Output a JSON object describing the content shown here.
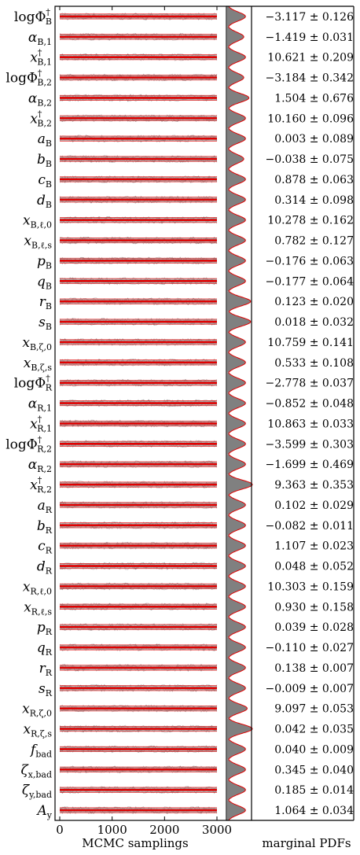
{
  "chart_data": {
    "type": "trace",
    "xlabel": "MCMC samplings",
    "pdf_label": "marginal PDFs",
    "x_ticks": [
      "0",
      "1000",
      "2000",
      "3000"
    ],
    "xlim": [
      0,
      3000
    ],
    "colors": {
      "trace": "#808080",
      "mean": "#e00000",
      "pdf_fill": "#808080",
      "pdf_line": "#e00000"
    },
    "parameters": [
      {
        "label": "logΦ†_B",
        "main": "logΦ",
        "sub": "B",
        "sup": "†",
        "mean": -3.117,
        "err": 0.126,
        "value_text": "−3.117 ± 0.126",
        "pdf_peak": 0.4
      },
      {
        "label": "α_B,1",
        "main": "α",
        "sub": "B,1",
        "sup": "",
        "mean": -1.419,
        "err": 0.031,
        "value_text": "−1.419 ± 0.031",
        "pdf_peak": 0.35
      },
      {
        "label": "x†_B,1",
        "main": "x",
        "sub": "B,1",
        "sup": "†",
        "mean": 10.621,
        "err": 0.209,
        "value_text": "10.621 ± 0.209",
        "pdf_peak": 0.4
      },
      {
        "label": "logΦ†_B,2",
        "main": "logΦ",
        "sub": "B,2",
        "sup": "†",
        "mean": -3.184,
        "err": 0.342,
        "value_text": "−3.184 ± 0.342",
        "pdf_peak": 0.35
      },
      {
        "label": "α_B,2",
        "main": "α",
        "sub": "B,2",
        "sup": "",
        "mean": 1.504,
        "err": 0.676,
        "value_text": "1.504 ± 0.676",
        "pdf_peak": 0.5
      },
      {
        "label": "x†_B,2",
        "main": "x",
        "sub": "B,2",
        "sup": "†",
        "mean": 10.16,
        "err": 0.096,
        "value_text": "10.160 ± 0.096",
        "pdf_peak": 0.4
      },
      {
        "label": "a_B",
        "main": "a",
        "sub": "B",
        "sup": "",
        "mean": 0.003,
        "err": 0.089,
        "value_text": "0.003 ± 0.089",
        "pdf_peak": 0.4
      },
      {
        "label": "b_B",
        "main": "b",
        "sub": "B",
        "sup": "",
        "mean": -0.038,
        "err": 0.075,
        "value_text": "−0.038 ± 0.075",
        "pdf_peak": 0.35
      },
      {
        "label": "c_B",
        "main": "c",
        "sub": "B",
        "sup": "",
        "mean": 0.878,
        "err": 0.063,
        "value_text": "0.878 ± 0.063",
        "pdf_peak": 0.4
      },
      {
        "label": "d_B",
        "main": "d",
        "sub": "B",
        "sup": "",
        "mean": 0.314,
        "err": 0.098,
        "value_text": "0.314 ± 0.098",
        "pdf_peak": 0.4
      },
      {
        "label": "x_B,ℓ,0",
        "main": "x",
        "sub": "B,ℓ,0",
        "sup": "",
        "mean": 10.278,
        "err": 0.162,
        "value_text": "10.278 ± 0.162",
        "pdf_peak": 0.4
      },
      {
        "label": "x_B,ℓ,s",
        "main": "x",
        "sub": "B,ℓ,s",
        "sup": "",
        "mean": 0.782,
        "err": 0.127,
        "value_text": "0.782 ± 0.127",
        "pdf_peak": 0.4
      },
      {
        "label": "p_B",
        "main": "p",
        "sub": "B",
        "sup": "",
        "mean": -0.176,
        "err": 0.063,
        "value_text": "−0.176 ± 0.063",
        "pdf_peak": 0.4
      },
      {
        "label": "q_B",
        "main": "q",
        "sub": "B",
        "sup": "",
        "mean": -0.177,
        "err": 0.064,
        "value_text": "−0.177 ± 0.064",
        "pdf_peak": 0.4
      },
      {
        "label": "r_B",
        "main": "r",
        "sub": "B",
        "sup": "",
        "mean": 0.123,
        "err": 0.02,
        "value_text": "0.123 ± 0.020",
        "pdf_peak": 0.55
      },
      {
        "label": "s_B",
        "main": "s",
        "sub": "B",
        "sup": "",
        "mean": 0.018,
        "err": 0.032,
        "value_text": "0.018 ± 0.032",
        "pdf_peak": 0.55
      },
      {
        "label": "x_B,ζ,0",
        "main": "x",
        "sub": "B,ζ,0",
        "sup": "",
        "mean": 10.759,
        "err": 0.141,
        "value_text": "10.759 ± 0.141",
        "pdf_peak": 0.4
      },
      {
        "label": "x_B,ζ,s",
        "main": "x",
        "sub": "B,ζ,s",
        "sup": "",
        "mean": 0.533,
        "err": 0.108,
        "value_text": "0.533 ± 0.108",
        "pdf_peak": 0.4
      },
      {
        "label": "logΦ†_R",
        "main": "logΦ",
        "sub": "R",
        "sup": "†",
        "mean": -2.778,
        "err": 0.037,
        "value_text": "−2.778 ± 0.037",
        "pdf_peak": 0.4
      },
      {
        "label": "α_R,1",
        "main": "α",
        "sub": "R,1",
        "sup": "",
        "mean": -0.852,
        "err": 0.048,
        "value_text": "−0.852 ± 0.048",
        "pdf_peak": 0.4
      },
      {
        "label": "x†_R,1",
        "main": "x",
        "sub": "R,1",
        "sup": "†",
        "mean": 10.863,
        "err": 0.033,
        "value_text": "10.863 ± 0.033",
        "pdf_peak": 0.4
      },
      {
        "label": "logΦ†_R,2",
        "main": "logΦ",
        "sub": "R,2",
        "sup": "†",
        "mean": -3.599,
        "err": 0.303,
        "value_text": "−3.599 ± 0.303",
        "pdf_peak": 0.4
      },
      {
        "label": "α_R,2",
        "main": "α",
        "sub": "R,2",
        "sup": "",
        "mean": -1.699,
        "err": 0.469,
        "value_text": "−1.699 ± 0.469",
        "pdf_peak": 0.4
      },
      {
        "label": "x†_R,2",
        "main": "x",
        "sub": "R,2",
        "sup": "†",
        "mean": 9.363,
        "err": 0.353,
        "value_text": "9.363 ± 0.353",
        "pdf_peak": 0.6
      },
      {
        "label": "a_R",
        "main": "a",
        "sub": "R",
        "sup": "",
        "mean": 0.102,
        "err": 0.029,
        "value_text": "0.102 ± 0.029",
        "pdf_peak": 0.4
      },
      {
        "label": "b_R",
        "main": "b",
        "sub": "R",
        "sup": "",
        "mean": -0.082,
        "err": 0.011,
        "value_text": "−0.082 ± 0.011",
        "pdf_peak": 0.4
      },
      {
        "label": "c_R",
        "main": "c",
        "sub": "R",
        "sup": "",
        "mean": 1.107,
        "err": 0.023,
        "value_text": "1.107 ± 0.023",
        "pdf_peak": 0.4
      },
      {
        "label": "d_R",
        "main": "d",
        "sub": "R",
        "sup": "",
        "mean": 0.048,
        "err": 0.052,
        "value_text": "0.048 ± 0.052",
        "pdf_peak": 0.4
      },
      {
        "label": "x_R,ℓ,0",
        "main": "x",
        "sub": "R,ℓ,0",
        "sup": "",
        "mean": 10.303,
        "err": 0.159,
        "value_text": "10.303 ± 0.159",
        "pdf_peak": 0.4
      },
      {
        "label": "x_R,ℓ,s",
        "main": "x",
        "sub": "R,ℓ,s",
        "sup": "",
        "mean": 0.93,
        "err": 0.158,
        "value_text": "0.930 ± 0.158",
        "pdf_peak": 0.4
      },
      {
        "label": "p_R",
        "main": "p",
        "sub": "R",
        "sup": "",
        "mean": 0.039,
        "err": 0.028,
        "value_text": "0.039 ± 0.028",
        "pdf_peak": 0.4
      },
      {
        "label": "q_R",
        "main": "q",
        "sub": "R",
        "sup": "",
        "mean": -0.11,
        "err": 0.027,
        "value_text": "−0.110 ± 0.027",
        "pdf_peak": 0.4
      },
      {
        "label": "r_R",
        "main": "r",
        "sub": "R",
        "sup": "",
        "mean": 0.138,
        "err": 0.007,
        "value_text": "0.138 ± 0.007",
        "pdf_peak": 0.4
      },
      {
        "label": "s_R",
        "main": "s",
        "sub": "R",
        "sup": "",
        "mean": -0.009,
        "err": 0.007,
        "value_text": "−0.009 ± 0.007",
        "pdf_peak": 0.4
      },
      {
        "label": "x_R,ζ,0",
        "main": "x",
        "sub": "R,ζ,0",
        "sup": "",
        "mean": 9.097,
        "err": 0.053,
        "value_text": "9.097 ± 0.053",
        "pdf_peak": 0.45
      },
      {
        "label": "x_R,ζ,s",
        "main": "x",
        "sub": "R,ζ,s",
        "sup": "",
        "mean": 0.042,
        "err": 0.035,
        "value_text": "0.042 ± 0.035",
        "pdf_peak": 0.6
      },
      {
        "label": "f_bad",
        "main": "f",
        "sub": "bad",
        "sup": "",
        "mean": 0.04,
        "err": 0.009,
        "value_text": "0.040 ± 0.009",
        "pdf_peak": 0.4
      },
      {
        "label": "ζ_x,bad",
        "main": "ζ",
        "sub": "x,bad",
        "sup": "",
        "mean": 0.345,
        "err": 0.04,
        "value_text": "0.345 ± 0.040",
        "pdf_peak": 0.4
      },
      {
        "label": "ζ_y,bad",
        "main": "ζ",
        "sub": "y,bad",
        "sup": "",
        "mean": 0.185,
        "err": 0.014,
        "value_text": "0.185 ± 0.014",
        "pdf_peak": 0.4
      },
      {
        "label": "A_y",
        "main": "A",
        "sub": "y",
        "sup": "",
        "mean": 1.064,
        "err": 0.034,
        "value_text": "1.064 ± 0.034",
        "pdf_peak": 0.4
      }
    ]
  }
}
